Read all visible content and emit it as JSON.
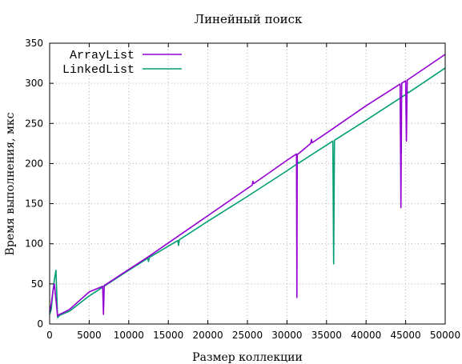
{
  "chart_data": {
    "type": "line",
    "title": "Линейный поиск",
    "xlabel": "Размер коллекции",
    "ylabel": "Время выполнения, мкс",
    "xlim": [
      0,
      50000
    ],
    "ylim": [
      0,
      350
    ],
    "grid": true,
    "legend_position": "top-left",
    "x_ticks": [
      "0",
      "5000",
      "10000",
      "15000",
      "20000",
      "25000",
      "30000",
      "35000",
      "40000",
      "45000",
      "50000"
    ],
    "y_ticks": [
      "0",
      "50",
      "100",
      "150",
      "200",
      "250",
      "300",
      "350"
    ],
    "series": [
      {
        "name": "ArrayList",
        "color": "#9400d3",
        "x": [
          0,
          200,
          400,
          600,
          800,
          1000,
          1200,
          1500,
          2500,
          5000,
          6700,
          6800,
          6900,
          10000,
          12500,
          15000,
          20000,
          25000,
          25600,
          25700,
          25800,
          30000,
          31200,
          31250,
          31300,
          33000,
          33100,
          33200,
          35000,
          40000,
          44300,
          44400,
          44500,
          45000,
          45100,
          45200,
          50000
        ],
        "values": [
          15,
          25,
          40,
          50,
          30,
          10,
          12,
          13,
          18,
          40,
          47,
          12,
          48,
          68,
          84,
          101,
          135,
          169,
          173,
          178,
          175,
          204,
          212,
          33,
          211,
          225,
          230,
          226,
          238,
          272,
          299,
          145,
          300,
          303,
          228,
          304,
          336
        ]
      },
      {
        "name": "LinkedList",
        "color": "#009e73",
        "x": [
          0,
          200,
          400,
          600,
          800,
          1000,
          1100,
          1300,
          2500,
          5000,
          10000,
          12400,
          12500,
          12600,
          15000,
          16200,
          16300,
          16400,
          20000,
          25000,
          30000,
          31200,
          31300,
          31400,
          35800,
          35900,
          36000,
          40000,
          45000,
          45200,
          45300,
          50000
        ],
        "values": [
          12,
          18,
          40,
          55,
          67,
          8,
          9,
          11,
          16,
          35,
          67,
          82,
          78,
          83,
          97,
          104,
          98,
          105,
          128,
          159,
          191,
          199,
          205,
          200,
          228,
          75,
          229,
          254,
          286,
          290,
          288,
          319
        ]
      }
    ]
  }
}
